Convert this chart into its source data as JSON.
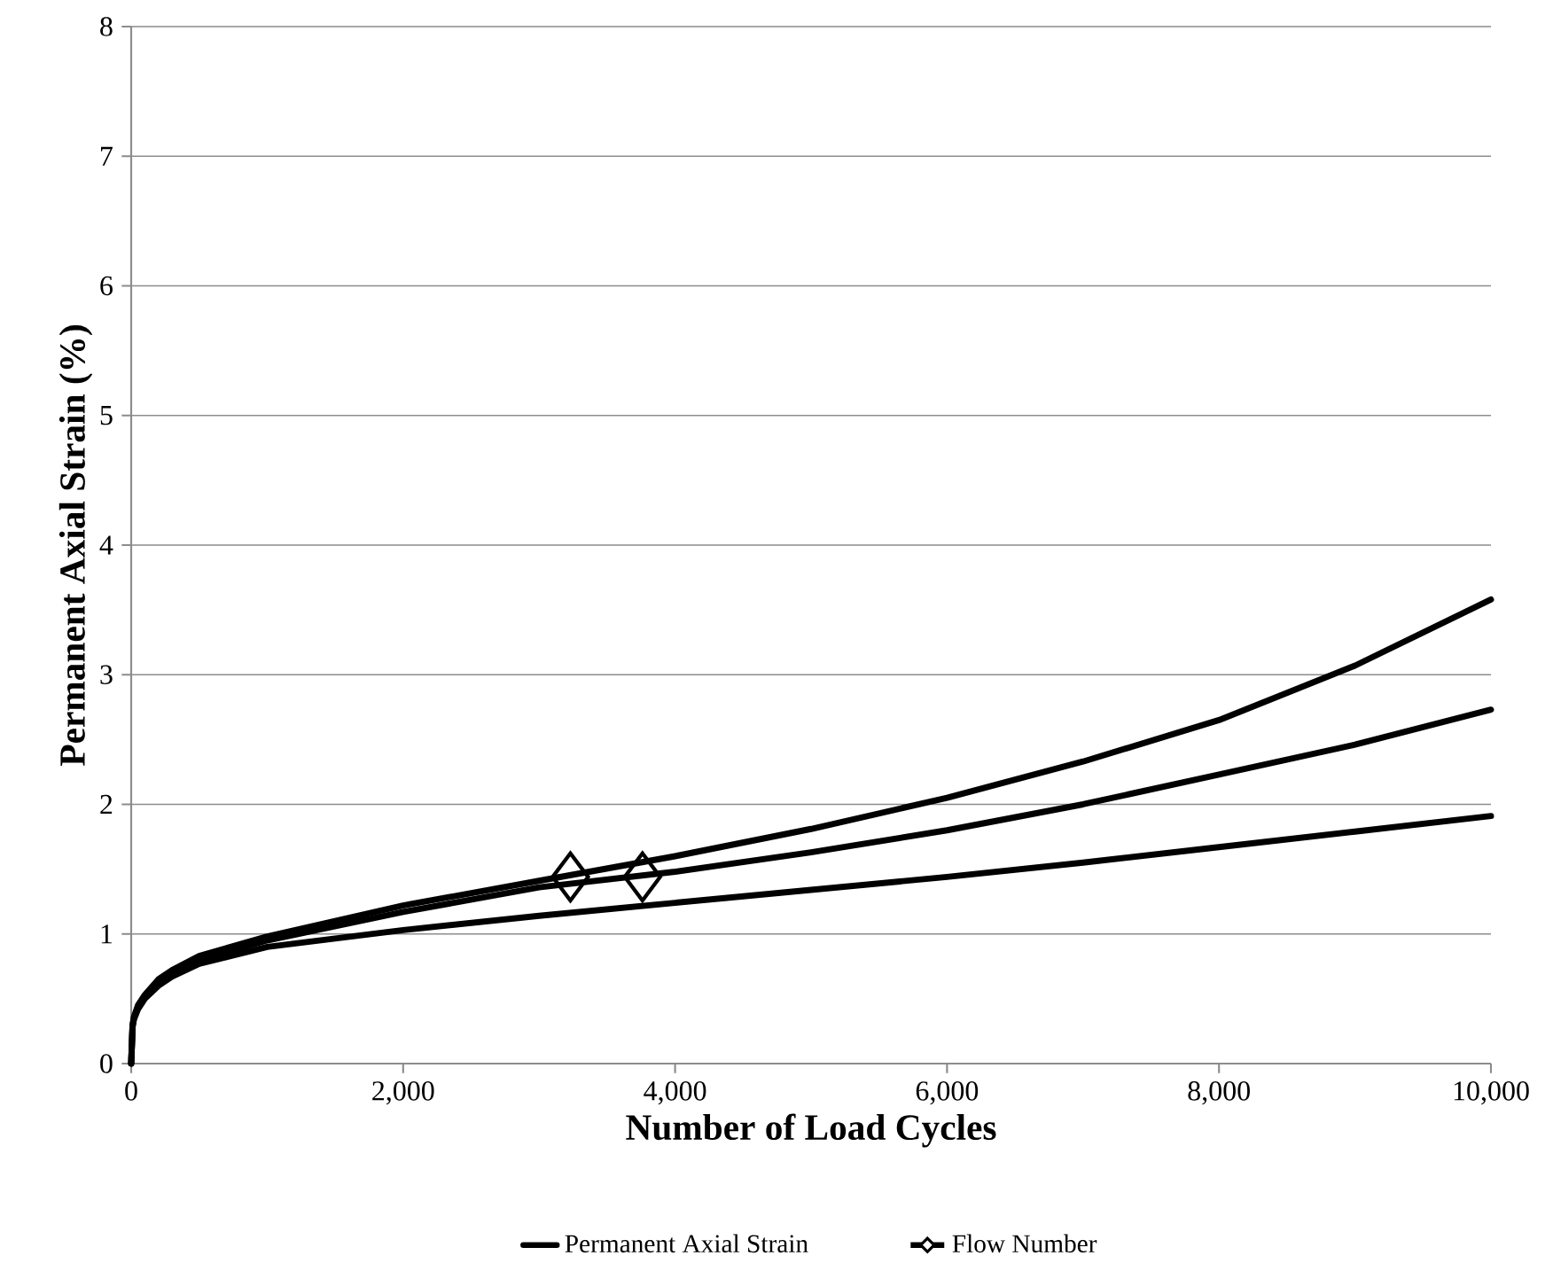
{
  "chart_data": {
    "type": "line",
    "xlabel": "Number of Load Cycles",
    "ylabel": "Permanent Axial Strain (%)",
    "xlim": [
      0,
      10000
    ],
    "ylim": [
      0,
      8
    ],
    "xticks": [
      {
        "value": 0,
        "label": "0"
      },
      {
        "value": 2000,
        "label": "2,000"
      },
      {
        "value": 4000,
        "label": "4,000"
      },
      {
        "value": 6000,
        "label": "6,000"
      },
      {
        "value": 8000,
        "label": "8,000"
      },
      {
        "value": 10000,
        "label": "10,000"
      }
    ],
    "yticks": [
      0,
      1,
      2,
      3,
      4,
      5,
      6,
      7,
      8
    ],
    "grid": "y",
    "legend": "bottom",
    "line_style": "solid",
    "series": [
      {
        "name": "Permanent Axial Strain",
        "color": "#000000",
        "x": [
          0,
          10,
          20,
          50,
          100,
          200,
          300,
          500,
          1000,
          2000,
          3000,
          4000,
          5000,
          6000,
          7000,
          8000,
          9000,
          10000
        ],
        "values": [
          0,
          0.3,
          0.36,
          0.45,
          0.53,
          0.65,
          0.72,
          0.83,
          0.98,
          1.22,
          1.41,
          1.6,
          1.81,
          2.05,
          2.33,
          2.65,
          3.07,
          3.58
        ]
      },
      {
        "color": "#000000",
        "x": [
          0,
          10,
          20,
          50,
          100,
          200,
          300,
          500,
          1000,
          2000,
          3000,
          4000,
          5000,
          6000,
          7000,
          8000,
          9000,
          10000
        ],
        "values": [
          0,
          0.29,
          0.35,
          0.43,
          0.52,
          0.63,
          0.7,
          0.8,
          0.95,
          1.17,
          1.36,
          1.48,
          1.63,
          1.8,
          2.0,
          2.23,
          2.46,
          2.73
        ]
      },
      {
        "color": "#000000",
        "x": [
          0,
          10,
          20,
          50,
          100,
          200,
          300,
          500,
          1000,
          2000,
          3000,
          4000,
          5000,
          6000,
          7000,
          8000,
          9000,
          10000
        ],
        "values": [
          0,
          0.28,
          0.34,
          0.42,
          0.5,
          0.6,
          0.67,
          0.77,
          0.9,
          1.03,
          1.14,
          1.24,
          1.34,
          1.44,
          1.55,
          1.67,
          1.79,
          1.91
        ]
      },
      {
        "name": "Flow Number",
        "color": "#000000",
        "type": "scatter",
        "marker": "diamond",
        "x": [
          3230,
          3760
        ],
        "values": [
          1.44,
          1.44
        ]
      }
    ]
  }
}
